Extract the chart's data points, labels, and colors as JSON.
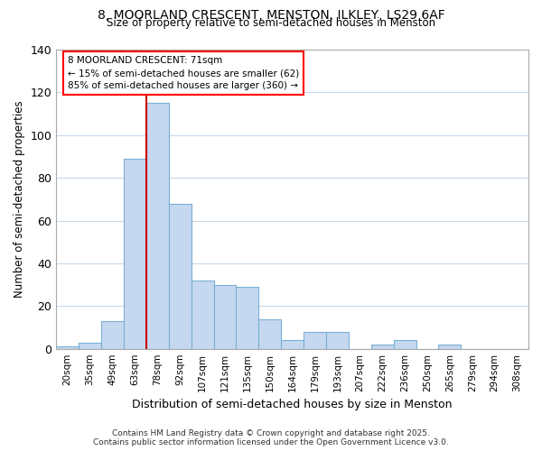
{
  "title_line1": "8, MOORLAND CRESCENT, MENSTON, ILKLEY, LS29 6AF",
  "title_line2": "Size of property relative to semi-detached houses in Menston",
  "xlabel": "Distribution of semi-detached houses by size in Menston",
  "ylabel": "Number of semi-detached properties",
  "bin_labels": [
    "20sqm",
    "35sqm",
    "49sqm",
    "63sqm",
    "78sqm",
    "92sqm",
    "107sqm",
    "121sqm",
    "135sqm",
    "150sqm",
    "164sqm",
    "179sqm",
    "193sqm",
    "207sqm",
    "222sqm",
    "236sqm",
    "250sqm",
    "265sqm",
    "279sqm",
    "294sqm",
    "308sqm"
  ],
  "bin_values": [
    1,
    3,
    13,
    89,
    115,
    68,
    32,
    30,
    29,
    14,
    4,
    8,
    8,
    0,
    2,
    4,
    0,
    2,
    0,
    0,
    0
  ],
  "bar_color": "#c5d8f0",
  "bar_edge_color": "#7aafd4",
  "property_line_x": 4.0,
  "annotation_title": "8 MOORLAND CRESCENT: 71sqm",
  "annotation_line1": "← 15% of semi-detached houses are smaller (62)",
  "annotation_line2": "85% of semi-detached houses are larger (360) →",
  "red_line_color": "#cc0000",
  "ylim": [
    0,
    140
  ],
  "yticks": [
    0,
    20,
    40,
    60,
    80,
    100,
    120,
    140
  ],
  "footnote1": "Contains HM Land Registry data © Crown copyright and database right 2025.",
  "footnote2": "Contains public sector information licensed under the Open Government Licence v3.0.",
  "background_color": "#ffffff",
  "grid_color": "#c8d8e8"
}
